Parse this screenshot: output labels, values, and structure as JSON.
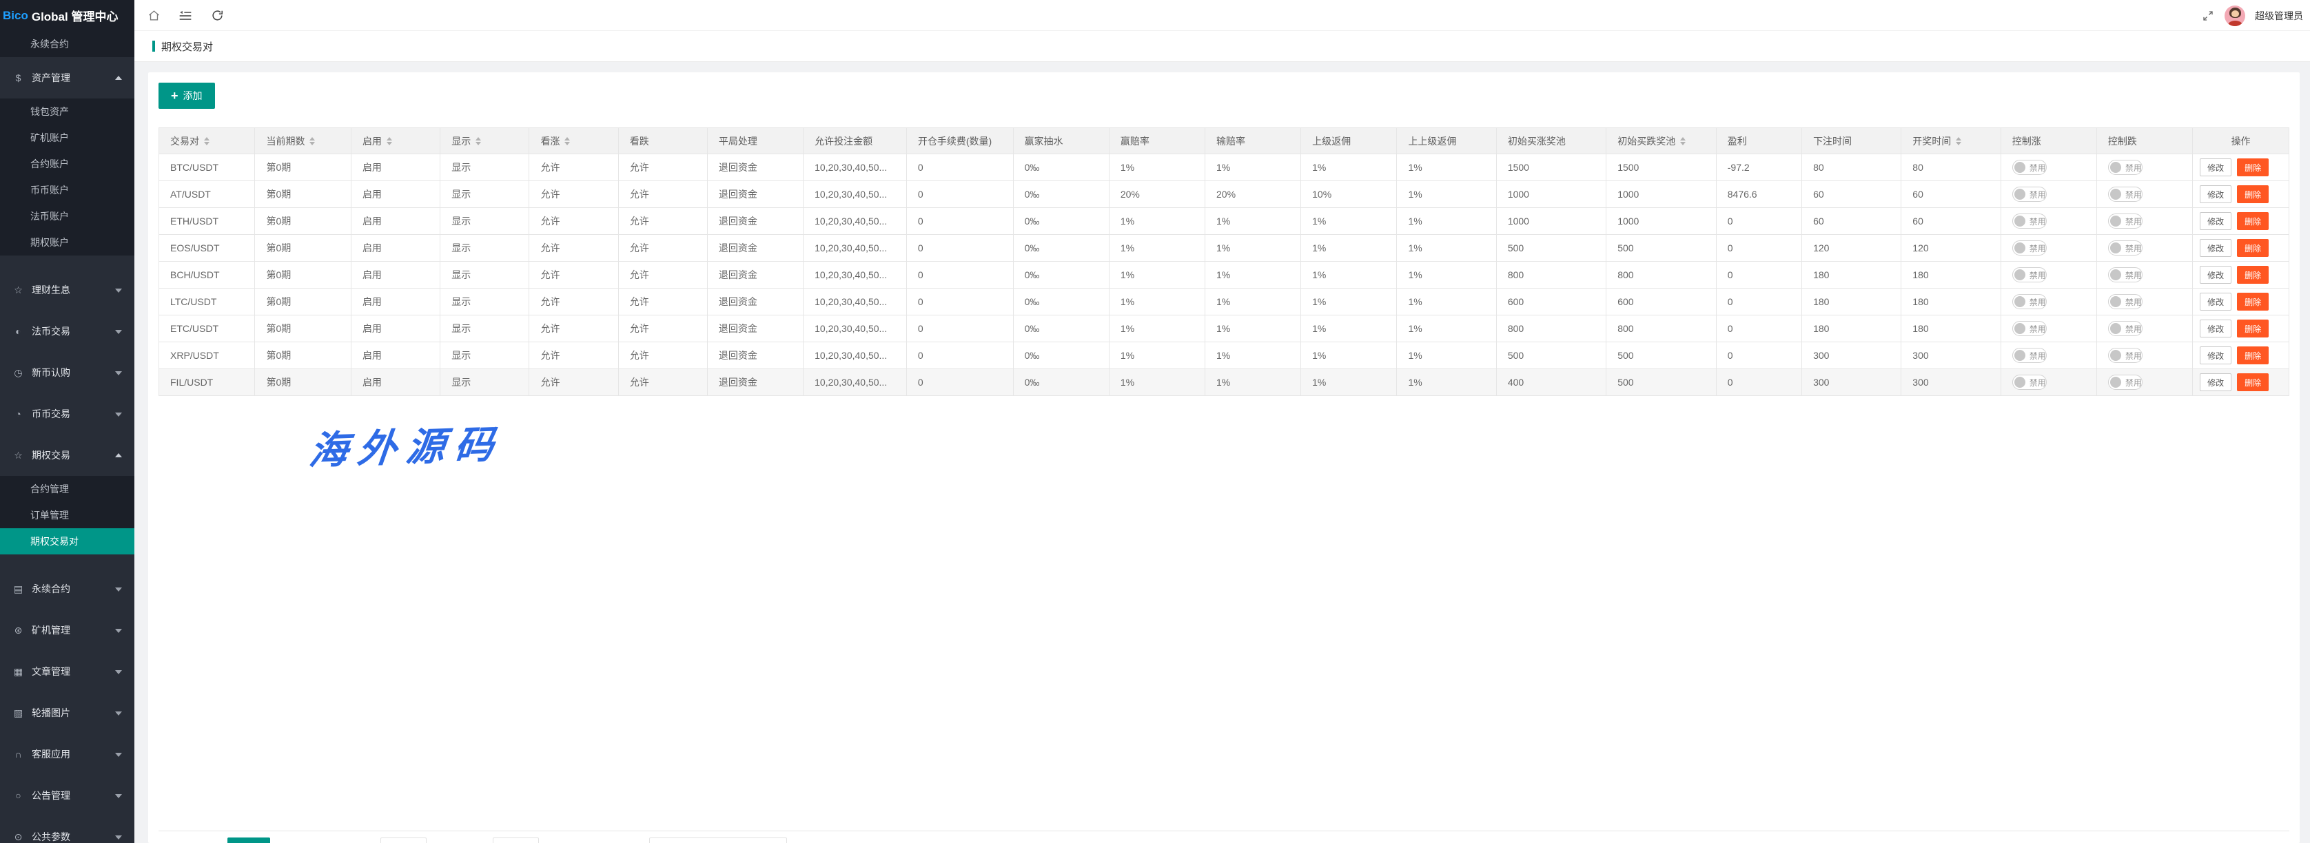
{
  "logo": {
    "brand_highlight": "Bico",
    "brand_rest": "Global 管理中心"
  },
  "topbar": {
    "username": "超级管理员"
  },
  "tab": {
    "title": "期权交易对"
  },
  "toolbar": {
    "add_label": "添加",
    "plus": "+"
  },
  "watermark": "海外源码",
  "colors": {
    "accent": "#009688",
    "danger": "#FF5722",
    "brand_blue": "#1E9FFF",
    "sidebar_bg": "#282d37",
    "sidebar_dark": "#1b1f28"
  },
  "sidebar": {
    "items": [
      {
        "type": "sub",
        "name": "perpetual-contract-sub",
        "label": "永续合约",
        "active": false
      },
      {
        "type": "top",
        "name": "assets-manage",
        "label": "资产管理",
        "icon": "dollar-icon",
        "glyph": "$",
        "state": "expanded"
      },
      {
        "type": "sub",
        "name": "wallet-assets",
        "label": "钱包资产",
        "active": false
      },
      {
        "type": "sub",
        "name": "miner-account",
        "label": "矿机账户",
        "active": false
      },
      {
        "type": "sub",
        "name": "contract-account",
        "label": "合约账户",
        "active": false
      },
      {
        "type": "sub",
        "name": "spot-account",
        "label": "币币账户",
        "active": false
      },
      {
        "type": "sub",
        "name": "fiat-account",
        "label": "法币账户",
        "active": false
      },
      {
        "type": "sub",
        "name": "options-account",
        "label": "期权账户",
        "active": false
      },
      {
        "type": "top",
        "name": "finance-interest",
        "label": "理财生息",
        "icon": "star-icon",
        "glyph": "☆",
        "state": "collapsed",
        "gap": true
      },
      {
        "type": "top",
        "name": "fiat-trade",
        "label": "法币交易",
        "icon": "half-circle-icon",
        "glyph": "◐",
        "state": "collapsed"
      },
      {
        "type": "top",
        "name": "new-coin-subscribe",
        "label": "新币认购",
        "icon": "clock-icon",
        "glyph": "◷",
        "state": "collapsed"
      },
      {
        "type": "top",
        "name": "spot-trade",
        "label": "币币交易",
        "icon": "history-icon",
        "glyph": "◔",
        "state": "collapsed"
      },
      {
        "type": "top",
        "name": "options-trade",
        "label": "期权交易",
        "icon": "star-icon",
        "glyph": "☆",
        "state": "expanded"
      },
      {
        "type": "sub",
        "name": "contract-manage",
        "label": "合约管理",
        "active": false
      },
      {
        "type": "sub",
        "name": "order-manage",
        "label": "订单管理",
        "active": false
      },
      {
        "type": "sub",
        "name": "options-pairs",
        "label": "期权交易对",
        "active": true
      },
      {
        "type": "top",
        "name": "perpetual-contract",
        "label": "永续合约",
        "icon": "file-icon",
        "glyph": "▤",
        "state": "collapsed",
        "gap": true
      },
      {
        "type": "top",
        "name": "miner-manage",
        "label": "矿机管理",
        "icon": "asterisk-circle-icon",
        "glyph": "⊛",
        "state": "collapsed"
      },
      {
        "type": "top",
        "name": "article-manage",
        "label": "文章管理",
        "icon": "book-icon",
        "glyph": "▦",
        "state": "collapsed"
      },
      {
        "type": "top",
        "name": "banner-images",
        "label": "轮播图片",
        "icon": "image-icon",
        "glyph": "▧",
        "state": "collapsed"
      },
      {
        "type": "top",
        "name": "customer-service",
        "label": "客服应用",
        "icon": "headset-icon",
        "glyph": "∩",
        "state": "collapsed"
      },
      {
        "type": "top",
        "name": "announcement-manage",
        "label": "公告管理",
        "icon": "bell-icon",
        "glyph": "○",
        "state": "collapsed"
      },
      {
        "type": "top",
        "name": "common-params",
        "label": "公共参数",
        "icon": "gear-icon",
        "glyph": "⊙",
        "state": "collapsed"
      }
    ]
  },
  "table": {
    "columns": [
      {
        "label": "交易对",
        "sortable": true
      },
      {
        "label": "当前期数",
        "sortable": true
      },
      {
        "label": "启用",
        "sortable": true
      },
      {
        "label": "显示",
        "sortable": true
      },
      {
        "label": "看涨",
        "sortable": true
      },
      {
        "label": "看跌",
        "sortable": false
      },
      {
        "label": "平局处理",
        "sortable": false
      },
      {
        "label": "允许投注金额",
        "sortable": false
      },
      {
        "label": "开仓手续费(数量)",
        "sortable": false
      },
      {
        "label": "赢家抽水",
        "sortable": false
      },
      {
        "label": "赢赔率",
        "sortable": false
      },
      {
        "label": "输赔率",
        "sortable": false
      },
      {
        "label": "上级返佣",
        "sortable": false
      },
      {
        "label": "上上级返佣",
        "sortable": false
      },
      {
        "label": "初始买涨奖池",
        "sortable": false
      },
      {
        "label": "初始买跌奖池",
        "sortable": true
      },
      {
        "label": "盈利",
        "sortable": false
      },
      {
        "label": "下注时间",
        "sortable": false
      },
      {
        "label": "开奖时间",
        "sortable": true
      },
      {
        "label": "控制涨",
        "sortable": false
      },
      {
        "label": "控制跌",
        "sortable": false
      },
      {
        "label": "操作",
        "sortable": false
      }
    ],
    "rows": [
      [
        "BTC/USDT",
        "第0期",
        "启用",
        "显示",
        "允许",
        "允许",
        "退回资金",
        "10,20,30,40,50...",
        "0",
        "0‰",
        "1%",
        "1%",
        "1%",
        "1%",
        "1500",
        "1500",
        "-97.2",
        "80",
        "80"
      ],
      [
        "AT/USDT",
        "第0期",
        "启用",
        "显示",
        "允许",
        "允许",
        "退回资金",
        "10,20,30,40,50...",
        "0",
        "0‰",
        "20%",
        "20%",
        "10%",
        "1%",
        "1000",
        "1000",
        "8476.6",
        "60",
        "60"
      ],
      [
        "ETH/USDT",
        "第0期",
        "启用",
        "显示",
        "允许",
        "允许",
        "退回资金",
        "10,20,30,40,50...",
        "0",
        "0‰",
        "1%",
        "1%",
        "1%",
        "1%",
        "1000",
        "1000",
        "0",
        "60",
        "60"
      ],
      [
        "EOS/USDT",
        "第0期",
        "启用",
        "显示",
        "允许",
        "允许",
        "退回资金",
        "10,20,30,40,50...",
        "0",
        "0‰",
        "1%",
        "1%",
        "1%",
        "1%",
        "500",
        "500",
        "0",
        "120",
        "120"
      ],
      [
        "BCH/USDT",
        "第0期",
        "启用",
        "显示",
        "允许",
        "允许",
        "退回资金",
        "10,20,30,40,50...",
        "0",
        "0‰",
        "1%",
        "1%",
        "1%",
        "1%",
        "800",
        "800",
        "0",
        "180",
        "180"
      ],
      [
        "LTC/USDT",
        "第0期",
        "启用",
        "显示",
        "允许",
        "允许",
        "退回资金",
        "10,20,30,40,50...",
        "0",
        "0‰",
        "1%",
        "1%",
        "1%",
        "1%",
        "600",
        "600",
        "0",
        "180",
        "180"
      ],
      [
        "ETC/USDT",
        "第0期",
        "启用",
        "显示",
        "允许",
        "允许",
        "退回资金",
        "10,20,30,40,50...",
        "0",
        "0‰",
        "1%",
        "1%",
        "1%",
        "1%",
        "800",
        "800",
        "0",
        "180",
        "180"
      ],
      [
        "XRP/USDT",
        "第0期",
        "启用",
        "显示",
        "允许",
        "允许",
        "退回资金",
        "10,20,30,40,50...",
        "0",
        "0‰",
        "1%",
        "1%",
        "1%",
        "1%",
        "500",
        "500",
        "0",
        "300",
        "300"
      ],
      [
        "FIL/USDT",
        "第0期",
        "启用",
        "显示",
        "允许",
        "允许",
        "退回资金",
        "10,20,30,40,50...",
        "0",
        "0‰",
        "1%",
        "1%",
        "1%",
        "1%",
        "400",
        "500",
        "0",
        "300",
        "300"
      ]
    ],
    "highlighted_row": 8,
    "toggle_label": "禁用",
    "actions": {
      "edit": "修改",
      "delete": "删除"
    }
  }
}
